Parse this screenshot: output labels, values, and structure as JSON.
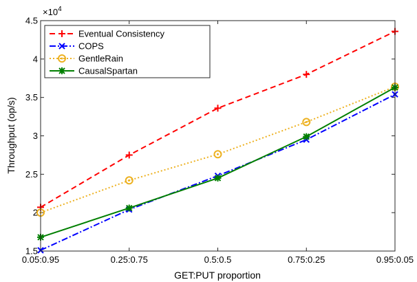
{
  "chart_data": {
    "type": "line",
    "xlabel": "GET:PUT proportion",
    "ylabel": "Throughput (op/s)",
    "y_multiplier_base": "×10",
    "y_multiplier_exponent": "4",
    "categories": [
      "0.05:0.95",
      "0.25:0.75",
      "0.5:0.5",
      "0.75:0.25",
      "0.95:0.05"
    ],
    "ylim": [
      1.5,
      4.5
    ],
    "yticks": [
      "1.5",
      "2",
      "2.5",
      "3",
      "3.5",
      "4",
      "4.5"
    ],
    "grid": false,
    "legend_position": "top-left",
    "series": [
      {
        "name": "Eventual Consistency",
        "values": [
          2.07,
          2.75,
          3.36,
          3.8,
          4.36
        ],
        "color": "#ff0000",
        "dash": "8,5",
        "marker": "plus"
      },
      {
        "name": "COPS",
        "values": [
          1.51,
          2.04,
          2.48,
          2.95,
          3.54
        ],
        "color": "#0000ff",
        "dash": "9,3,2,3",
        "marker": "x"
      },
      {
        "name": "GentleRain",
        "values": [
          2.0,
          2.42,
          2.76,
          3.18,
          3.64
        ],
        "color": "#edb120",
        "dash": "2,3",
        "marker": "circle"
      },
      {
        "name": "CausalSpartan",
        "values": [
          1.68,
          2.06,
          2.45,
          2.99,
          3.63
        ],
        "color": "#007f00",
        "dash": "",
        "marker": "star"
      }
    ]
  }
}
